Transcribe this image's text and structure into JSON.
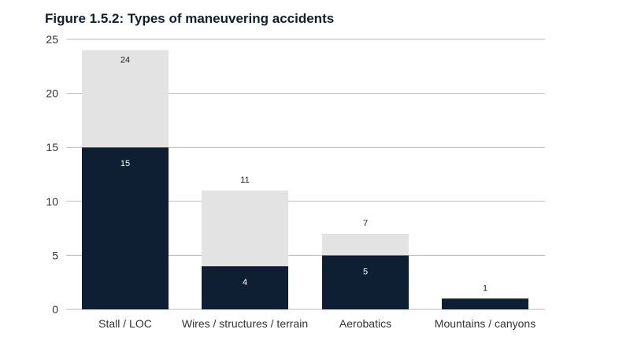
{
  "chart_data": {
    "type": "bar",
    "stacked": true,
    "title": "Figure 1.5.2: Types of maneuvering accidents",
    "xlabel": "",
    "ylabel": "",
    "ylim": [
      0,
      25
    ],
    "yticks": [
      0,
      5,
      10,
      15,
      20,
      25
    ],
    "grid": true,
    "categories": [
      "Stall / LOC",
      "Wires / structures / terrain",
      "Aerobatics",
      "Mountains / canyons"
    ],
    "series": [
      {
        "values": [
          15,
          4,
          5,
          1
        ],
        "color": "#0f1f33",
        "label_color": "#ffffff"
      },
      {
        "values": [
          9,
          7,
          2,
          0
        ],
        "color": "#e3e3e3",
        "label_color": "#222222"
      }
    ],
    "data_labels": {
      "lower": [
        "15",
        "4",
        "5",
        ""
      ],
      "total": [
        "24",
        "11",
        "7",
        "1"
      ]
    },
    "colors": {
      "gridline": "#b9b9b9",
      "axis_text": "#333333",
      "title": "#0f1f33"
    }
  }
}
